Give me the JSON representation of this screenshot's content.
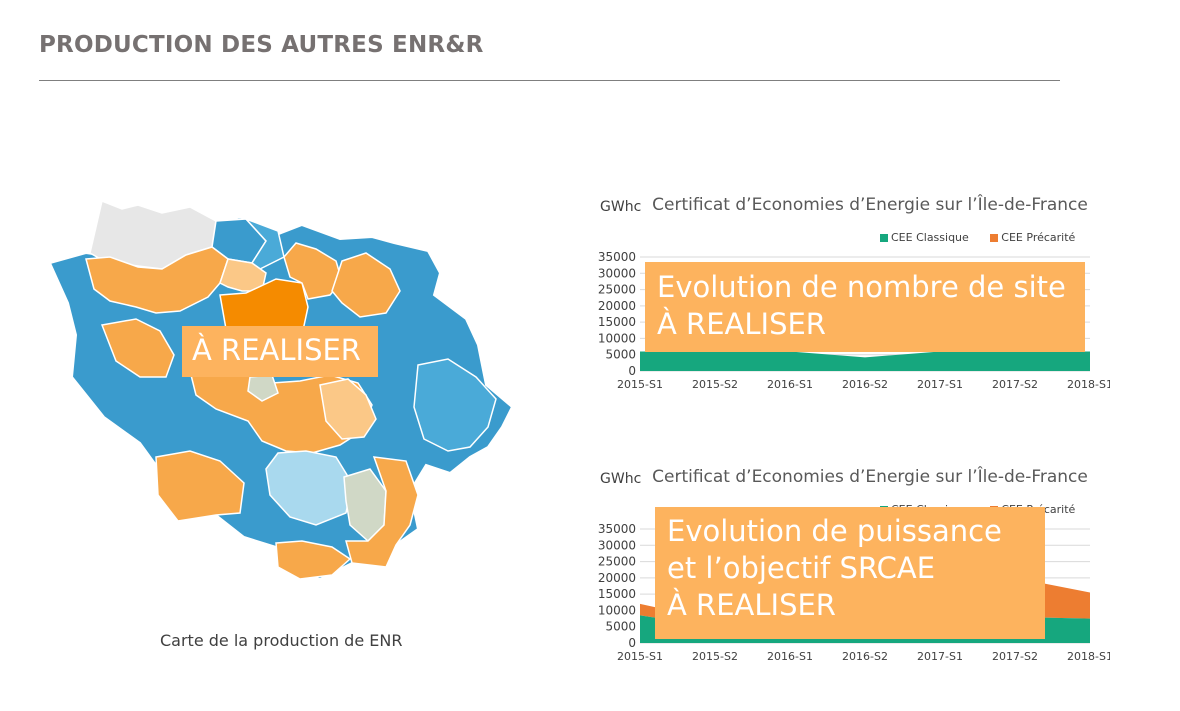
{
  "header": {
    "title": "PRODUCTION DES AUTRES ENR&R"
  },
  "map": {
    "caption": "Carte de la production de ENR",
    "overlay_text": "À REALISER",
    "colors": {
      "blue": "#3a9bcd",
      "light_blue": "#4aaad8",
      "pale_blue": "#a9d9ee",
      "orange": "#f7a84a",
      "light_orange": "#fbc887",
      "dark_orange": "#f58b00",
      "grey": "#e7e7e7",
      "sage": "#d0d8c6"
    }
  },
  "charts": [
    {
      "title": "Certificat d’Economies d’Energie sur l’Île-de-France",
      "unit": "GWhc",
      "overlay_text": "Evolution de nombre de site\nÀ REALISER",
      "legend": [
        {
          "label": "CEE Classique",
          "color": "#16a77e"
        },
        {
          "label": "CEE Précarité",
          "color": "#ed7d31"
        }
      ]
    },
    {
      "title": "Certificat d’Economies d’Energie sur l’Île-de-France",
      "unit": "GWhc",
      "overlay_text": "Evolution de puissance\net l’objectif SRCAE\nÀ REALISER",
      "legend": [
        {
          "label": "CEE Classique",
          "color": "#16a77e"
        },
        {
          "label": "CEE Précarité",
          "color": "#ed7d31"
        }
      ]
    }
  ],
  "chart_data": [
    {
      "type": "area",
      "title": "Certificat d’Economies d’Energie sur l’Île-de-France",
      "ylabel": "GWhc",
      "x": [
        "2015-S1",
        "2015-S2",
        "2016-S1",
        "2016-S2",
        "2017-S1",
        "2017-S2",
        "2018-S1"
      ],
      "yticks": [
        0,
        5000,
        10000,
        15000,
        20000,
        25000,
        30000,
        35000
      ],
      "ylim": [
        0,
        35000
      ],
      "grid": true,
      "legend_position": "top-right",
      "series": [
        {
          "name": "CEE Classique",
          "values": [
            6000,
            6000,
            6000,
            4200,
            6000,
            6000,
            6000
          ]
        },
        {
          "name": "CEE Précarité",
          "values": [
            0,
            0,
            0,
            0,
            0,
            0,
            0
          ]
        }
      ]
    },
    {
      "type": "area",
      "title": "Certificat d’Economies d’Energie sur l’Île-de-France",
      "ylabel": "GWhc",
      "x": [
        "2015-S1",
        "2015-S2",
        "2016-S1",
        "2016-S2",
        "2017-S1",
        "2017-S2",
        "2018-S1"
      ],
      "yticks": [
        0,
        5000,
        10000,
        15000,
        20000,
        25000,
        30000,
        35000
      ],
      "ylim": [
        0,
        35000
      ],
      "grid": true,
      "legend_position": "top-right",
      "series": [
        {
          "name": "CEE Classique",
          "values": [
            8500,
            5000,
            3000,
            2500,
            3000,
            8000,
            7500
          ]
        },
        {
          "name": "CEE Précarité",
          "values": [
            3500,
            2000,
            2000,
            2500,
            4000,
            12000,
            8000
          ]
        }
      ]
    }
  ]
}
